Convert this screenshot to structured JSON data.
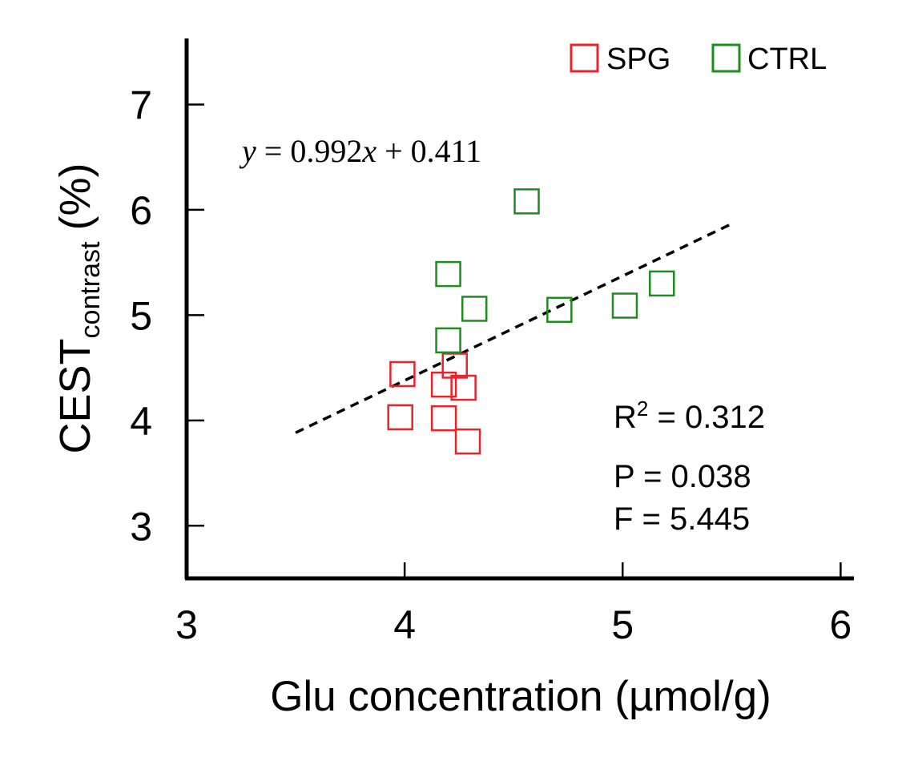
{
  "chart_data": {
    "type": "scatter",
    "xlabel": "Glu concentration (µmol/g)",
    "ylabel_main": "CEST",
    "ylabel_sub": "contrast",
    "ylabel_unit": "(%)",
    "xlim": [
      3,
      6.05
    ],
    "ylim": [
      2.5,
      7.65
    ],
    "xticks": [
      "3",
      "4",
      "5",
      "6"
    ],
    "xtick_values": [
      3,
      4,
      5,
      6
    ],
    "yticks": [
      "3",
      "4",
      "5",
      "6",
      "7"
    ],
    "ytick_values": [
      3,
      4,
      5,
      6,
      7
    ],
    "grid": false,
    "legend_position": "top-right",
    "series": [
      {
        "name": "SPG",
        "color": "#e8242b",
        "marker": "open-square",
        "points": [
          {
            "x": 3.99,
            "y": 4.44
          },
          {
            "x": 3.98,
            "y": 4.03
          },
          {
            "x": 4.18,
            "y": 4.34
          },
          {
            "x": 4.18,
            "y": 4.02
          },
          {
            "x": 4.23,
            "y": 4.52
          },
          {
            "x": 4.27,
            "y": 4.31
          },
          {
            "x": 4.29,
            "y": 3.8
          }
        ]
      },
      {
        "name": "CTRL",
        "color": "#1e8c1e",
        "marker": "open-square",
        "points": [
          {
            "x": 4.56,
            "y": 6.08
          },
          {
            "x": 4.2,
            "y": 5.39
          },
          {
            "x": 4.32,
            "y": 5.06
          },
          {
            "x": 4.2,
            "y": 4.76
          },
          {
            "x": 4.71,
            "y": 5.05
          },
          {
            "x": 5.01,
            "y": 5.09
          },
          {
            "x": 5.18,
            "y": 5.3
          }
        ]
      }
    ],
    "fit_line": {
      "slope": 0.992,
      "intercept": 0.411,
      "x_start": 3.5,
      "x_end": 5.5,
      "style": "dashed",
      "color": "#000000"
    },
    "equation": {
      "y": "y",
      "eq": " = 0.992",
      "x": "x",
      "rest": " + 0.411"
    },
    "stats": {
      "r2_label": "R",
      "r2_sup": "2",
      "r2_value": " = 0.312",
      "p": "P = 0.038",
      "f": "F = 5.445"
    }
  }
}
